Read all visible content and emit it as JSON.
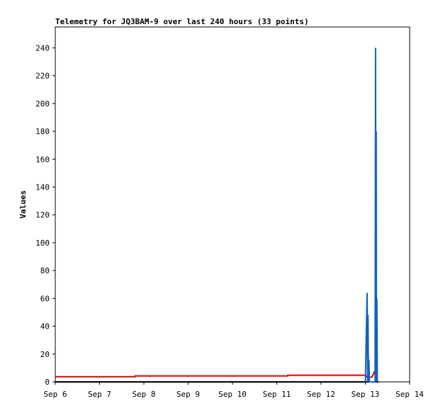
{
  "chart_data": {
    "type": "line",
    "title": "Telemetry for JQ3BAM-9 over last 240 hours (33 points)",
    "y_label": "Values",
    "xlim": [
      6,
      14
    ],
    "xticks": [
      {
        "value": 6,
        "label": "Sep 6"
      },
      {
        "value": 7,
        "label": "Sep 7"
      },
      {
        "value": 8,
        "label": "Sep 8"
      },
      {
        "value": 9,
        "label": "Sep 9"
      },
      {
        "value": 10,
        "label": "Sep 10"
      },
      {
        "value": 11,
        "label": "Sep 11"
      },
      {
        "value": 12,
        "label": "Sep 12"
      },
      {
        "value": 13,
        "label": "Sep 13"
      },
      {
        "value": 14,
        "label": "Sep 14"
      }
    ],
    "ylim": [
      0,
      255
    ],
    "yticks": [
      0,
      20,
      40,
      60,
      80,
      100,
      120,
      140,
      160,
      180,
      200,
      220,
      240
    ],
    "series": [
      {
        "color": "#000000",
        "x": [
          6,
          13.3
        ],
        "values": [
          0,
          0
        ]
      },
      {
        "color": "#dd0000",
        "x": [
          6,
          7.8,
          7.8,
          11.25,
          11.25,
          13.0,
          13.05,
          13.15,
          13.2,
          13.25
        ],
        "values": [
          3.7,
          3.7,
          4.3,
          4.3,
          4.8,
          4.8,
          3,
          3.5,
          7,
          4.8
        ]
      },
      {
        "color": "#1060c0",
        "x": [
          13.0,
          13.04,
          13.05,
          13.06,
          13.07,
          13.08,
          13.09,
          13.22,
          13.23,
          13.24,
          13.245,
          13.25,
          13.26,
          13.27
        ],
        "values": [
          0,
          64,
          0,
          48,
          0,
          16,
          0,
          0,
          240,
          0,
          180,
          0,
          60,
          0
        ]
      }
    ]
  }
}
